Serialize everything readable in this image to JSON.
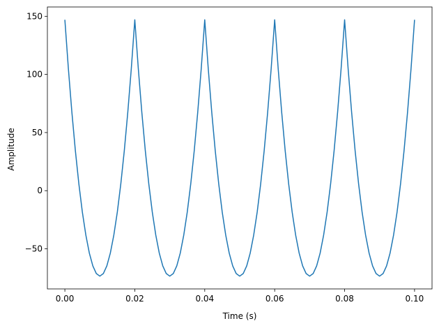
{
  "chart_data": {
    "type": "line",
    "xlabel": "Time (s)",
    "ylabel": "Amplitude",
    "color": "#1f77b4",
    "x": [
      0,
      0.001,
      0.002,
      0.003,
      0.004,
      0.005,
      0.006,
      0.007,
      0.008,
      0.009,
      0.01,
      0.011,
      0.012,
      0.013,
      0.014,
      0.015,
      0.016,
      0.017,
      0.018,
      0.019,
      0.02,
      0.021,
      0.022,
      0.023,
      0.024,
      0.025,
      0.026,
      0.027,
      0.028,
      0.029,
      0.03,
      0.031,
      0.032,
      0.033,
      0.034,
      0.035,
      0.036,
      0.037,
      0.038,
      0.039,
      0.04,
      0.041,
      0.042,
      0.043,
      0.044,
      0.045,
      0.046,
      0.047,
      0.048,
      0.049,
      0.05,
      0.051,
      0.052,
      0.053,
      0.054,
      0.055,
      0.056,
      0.057,
      0.058,
      0.059,
      0.06,
      0.061,
      0.062,
      0.063,
      0.064,
      0.065,
      0.066,
      0.067,
      0.068,
      0.069,
      0.07,
      0.071,
      0.072,
      0.073,
      0.074,
      0.075,
      0.076,
      0.077,
      0.078,
      0.079,
      0.08,
      0.081,
      0.082,
      0.083,
      0.084,
      0.085,
      0.086,
      0.087,
      0.088,
      0.089,
      0.09,
      0.091,
      0.092,
      0.093,
      0.094,
      0.095,
      0.096,
      0.097,
      0.098,
      0.099,
      0.1
    ],
    "values": [
      147,
      105.1,
      67.6,
      34.5,
      5.9,
      -18.4,
      -38.2,
      -53.7,
      -64.7,
      -71.3,
      -73.5,
      -71.3,
      -64.7,
      -53.7,
      -38.2,
      -18.4,
      5.9,
      34.5,
      67.6,
      105.1,
      147,
      105.1,
      67.6,
      34.5,
      5.9,
      -18.4,
      -38.2,
      -53.7,
      -64.7,
      -71.3,
      -73.5,
      -71.3,
      -64.7,
      -53.7,
      -38.2,
      -18.4,
      5.9,
      34.5,
      67.6,
      105.1,
      147,
      105.1,
      67.6,
      34.5,
      5.9,
      -18.4,
      -38.2,
      -53.7,
      -64.7,
      -71.3,
      -73.5,
      -71.3,
      -64.7,
      -53.7,
      -38.2,
      -18.4,
      5.9,
      34.5,
      67.6,
      105.1,
      147,
      105.1,
      67.6,
      34.5,
      5.9,
      -18.4,
      -38.2,
      -53.7,
      -64.7,
      -71.3,
      -73.5,
      -71.3,
      -64.7,
      -53.7,
      -38.2,
      -18.4,
      5.9,
      34.5,
      67.6,
      105.1,
      147,
      105.1,
      67.6,
      34.5,
      5.9,
      -18.4,
      -38.2,
      -53.7,
      -64.7,
      -71.3,
      -73.5,
      -71.3,
      -64.7,
      -53.7,
      -38.2,
      -18.4,
      5.9,
      34.5,
      67.6,
      105.1,
      147
    ],
    "xlim": [
      -0.005,
      0.105
    ],
    "ylim": [
      -84.5,
      158
    ],
    "xticks": [
      {
        "value": 0,
        "label": "0.00"
      },
      {
        "value": 0.02,
        "label": "0.02"
      },
      {
        "value": 0.04,
        "label": "0.04"
      },
      {
        "value": 0.06,
        "label": "0.06"
      },
      {
        "value": 0.08,
        "label": "0.08"
      },
      {
        "value": 0.1,
        "label": "0.10"
      }
    ],
    "yticks": [
      {
        "value": -50,
        "label": "−50"
      },
      0,
      50,
      100,
      150
    ]
  }
}
